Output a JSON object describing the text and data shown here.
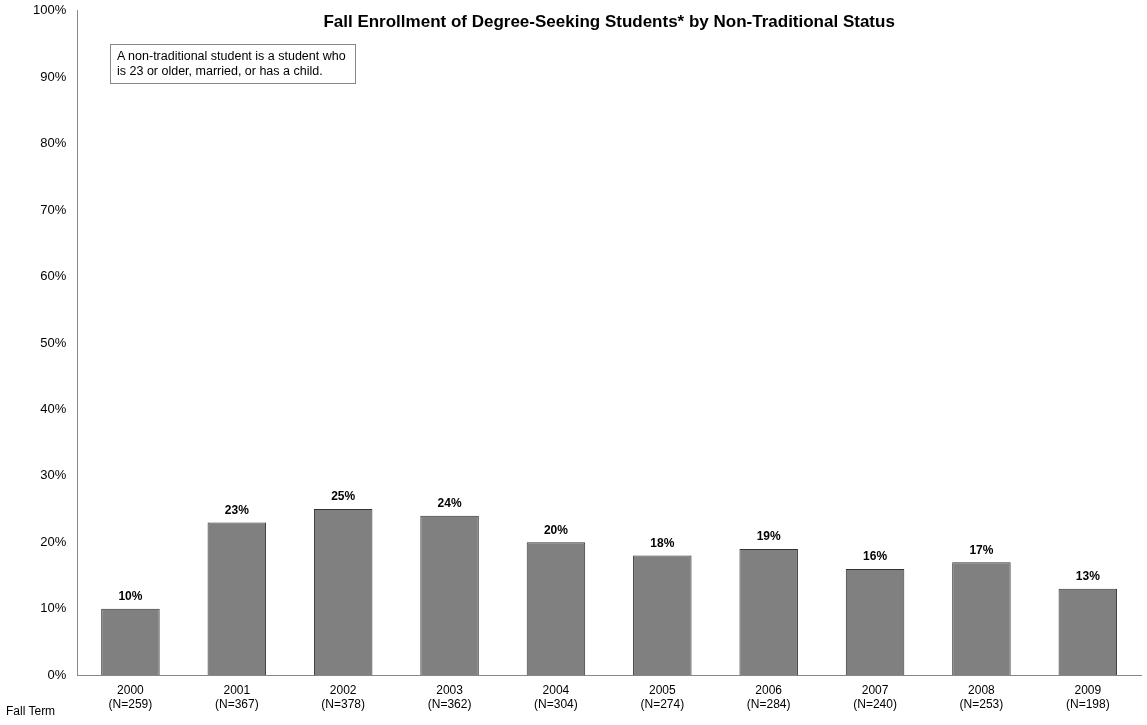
{
  "chart_data": {
    "type": "bar",
    "title": "Fall Enrollment of Degree-Seeking Students* by Non-Traditional Status",
    "xlabel": "Fall Term",
    "categories": [
      "2000\n(N=259)",
      "2001\n(N=367)",
      "2002\n(N=378)",
      "2003\n(N=362)",
      "2004\n(N=304)",
      "2005\n(N=274)",
      "2006\n(N=284)",
      "2007\n(N=240)",
      "2008\n(N=253)",
      "2009\n(N=198)"
    ],
    "values": [
      10,
      23,
      25,
      24,
      20,
      18,
      19,
      16,
      17,
      13
    ],
    "color": "#808080",
    "value_labels": [
      "10%",
      "23%",
      "25%",
      "24%",
      "20%",
      "18%",
      "19%",
      "16%",
      "17%",
      "13%"
    ],
    "ylim": [
      0,
      100
    ],
    "yticks": [
      {
        "value": 0,
        "label": "0%"
      },
      {
        "value": 10,
        "label": "10%"
      },
      {
        "value": 20,
        "label": "20%"
      },
      {
        "value": 30,
        "label": "30%"
      },
      {
        "value": 40,
        "label": "40%"
      },
      {
        "value": 50,
        "label": "50%"
      },
      {
        "value": 60,
        "label": "60%"
      },
      {
        "value": 70,
        "label": "70%"
      },
      {
        "value": 80,
        "label": "80%"
      },
      {
        "value": 90,
        "label": "90%"
      },
      {
        "value": 100,
        "label": "100%"
      }
    ],
    "grid": false,
    "legend": false,
    "annotations": [
      "A non-traditional student is a student who is 23 or older, married, or has a child."
    ]
  }
}
